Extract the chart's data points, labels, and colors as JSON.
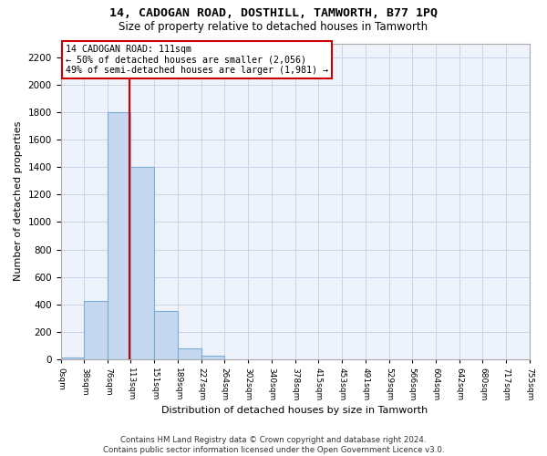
{
  "title": "14, CADOGAN ROAD, DOSTHILL, TAMWORTH, B77 1PQ",
  "subtitle": "Size of property relative to detached houses in Tamworth",
  "xlabel": "Distribution of detached houses by size in Tamworth",
  "ylabel": "Number of detached properties",
  "bar_color": "#c5d8f0",
  "bar_edge_color": "#7aadd4",
  "background_color": "#eef2fa",
  "grid_color": "#c8d4e8",
  "vline_x": 111,
  "vline_color": "#cc0000",
  "annotation_text": "14 CADOGAN ROAD: 111sqm\n← 50% of detached houses are smaller (2,056)\n49% of semi-detached houses are larger (1,981) →",
  "annotation_box_color": "white",
  "annotation_box_edge": "#cc0000",
  "bin_edges": [
    0,
    38,
    76,
    113,
    151,
    189,
    227,
    264,
    302,
    340,
    378,
    415,
    453,
    491,
    529,
    566,
    604,
    642,
    680,
    717,
    755
  ],
  "bar_heights": [
    15,
    425,
    1800,
    1400,
    350,
    80,
    25,
    0,
    0,
    0,
    0,
    0,
    0,
    0,
    0,
    0,
    0,
    0,
    0,
    0
  ],
  "ylim": [
    0,
    2300
  ],
  "yticks": [
    0,
    200,
    400,
    600,
    800,
    1000,
    1200,
    1400,
    1600,
    1800,
    2000,
    2200
  ],
  "footer_text": "Contains HM Land Registry data © Crown copyright and database right 2024.\nContains public sector information licensed under the Open Government Licence v3.0.",
  "tick_labels": [
    "0sqm",
    "38sqm",
    "76sqm",
    "113sqm",
    "151sqm",
    "189sqm",
    "227sqm",
    "264sqm",
    "302sqm",
    "340sqm",
    "378sqm",
    "415sqm",
    "453sqm",
    "491sqm",
    "529sqm",
    "566sqm",
    "604sqm",
    "642sqm",
    "680sqm",
    "717sqm",
    "755sqm"
  ]
}
